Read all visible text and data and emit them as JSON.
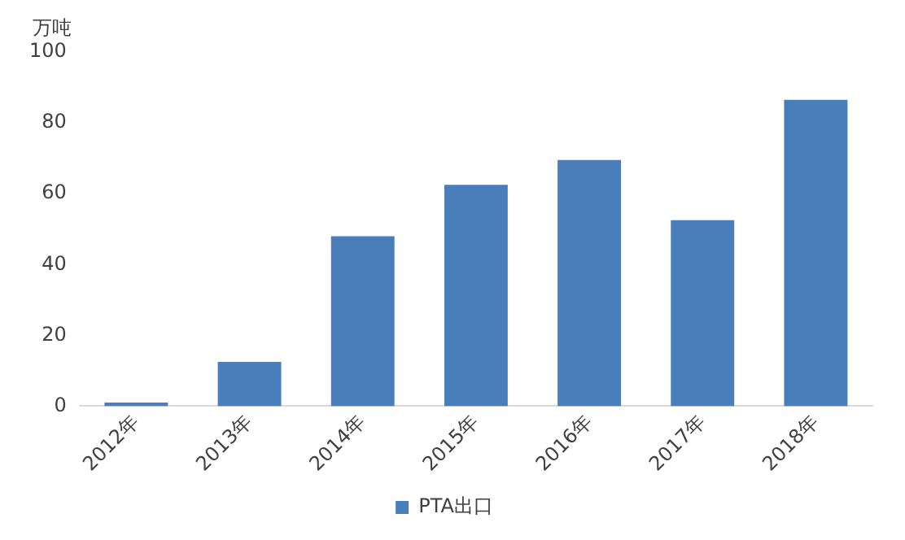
{
  "chart_data": {
    "type": "bar",
    "ylabel": "万吨",
    "categories": [
      "2012年",
      "2013年",
      "2014年",
      "2015年",
      "2016年",
      "2017年",
      "2018年"
    ],
    "series": [
      {
        "name": "PTA出口",
        "color": "#4a7ebb",
        "values": [
          1,
          12.5,
          48,
          62.5,
          69.5,
          52.5,
          86.5
        ]
      }
    ],
    "ylim": [
      0,
      100
    ],
    "yticks": [
      0,
      20,
      40,
      60,
      80,
      100
    ],
    "grid": false,
    "legend": "bottom"
  }
}
